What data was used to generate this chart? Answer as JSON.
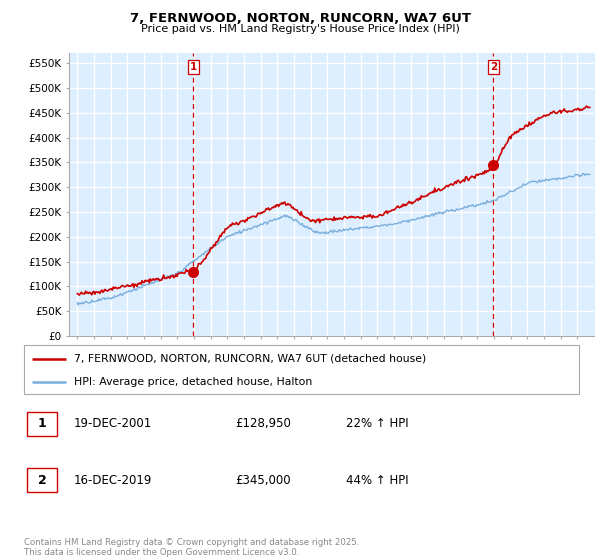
{
  "title": "7, FERNWOOD, NORTON, RUNCORN, WA7 6UT",
  "subtitle": "Price paid vs. HM Land Registry's House Price Index (HPI)",
  "legend_line1": "7, FERNWOOD, NORTON, RUNCORN, WA7 6UT (detached house)",
  "legend_line2": "HPI: Average price, detached house, Halton",
  "transaction1_label": "1",
  "transaction1_date": "19-DEC-2001",
  "transaction1_price": "£128,950",
  "transaction1_hpi": "22% ↑ HPI",
  "transaction2_label": "2",
  "transaction2_date": "16-DEC-2019",
  "transaction2_price": "£345,000",
  "transaction2_hpi": "44% ↑ HPI",
  "footer": "Contains HM Land Registry data © Crown copyright and database right 2025.\nThis data is licensed under the Open Government Licence v3.0.",
  "ylim": [
    0,
    570000
  ],
  "yticks": [
    0,
    50000,
    100000,
    150000,
    200000,
    250000,
    300000,
    350000,
    400000,
    450000,
    500000,
    550000
  ],
  "ytick_labels": [
    "£0",
    "£50K",
    "£100K",
    "£150K",
    "£200K",
    "£250K",
    "£300K",
    "£350K",
    "£400K",
    "£450K",
    "£500K",
    "£550K"
  ],
  "line_color_property": "#cc0000",
  "line_color_hpi": "#7aafdc",
  "vline_color": "#cc0000",
  "bg_fill_color": "#ddeeff",
  "background_color": "#ffffff",
  "grid_color": "#cccccc",
  "marker1_x": 2001.958,
  "marker1_y": 128950,
  "marker2_x": 2019.958,
  "marker2_y": 345000,
  "xlim_left": 1994.5,
  "xlim_right": 2026.0
}
